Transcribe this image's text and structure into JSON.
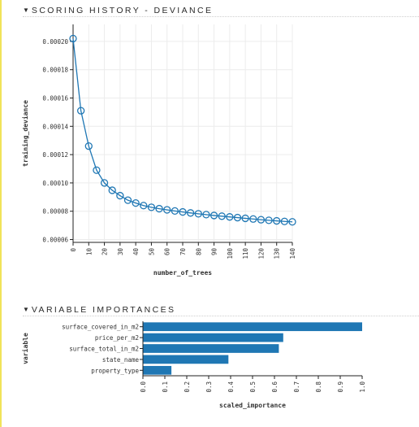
{
  "sections": {
    "scoring_history": {
      "title": "SCORING HISTORY - DEVIANCE"
    },
    "variable_importances": {
      "title": "VARIABLE IMPORTANCES"
    }
  },
  "colors": {
    "series": "#1f77b4",
    "bar": "#1f77b4",
    "sidebar_accent": "#f1e35a"
  },
  "chart_data": [
    {
      "type": "line",
      "title": "SCORING HISTORY - DEVIANCE",
      "xlabel": "number_of_trees",
      "ylabel": "training_deviance",
      "xlim": [
        0,
        140
      ],
      "ylim": [
        5.8e-05,
        0.000212
      ],
      "grid": true,
      "x_ticks": [
        "0",
        "10",
        "20",
        "30",
        "40",
        "50",
        "60",
        "70",
        "80",
        "90",
        "100",
        "110",
        "120",
        "130",
        "140"
      ],
      "y_ticks": [
        "0.00006",
        "0.00008",
        "0.00010",
        "0.00012",
        "0.00014",
        "0.00016",
        "0.00018",
        "0.00020"
      ],
      "markers": "open-circle",
      "series": [
        {
          "x": [
            0,
            5,
            10,
            15,
            20,
            25,
            30,
            35,
            40,
            45,
            50,
            55,
            60,
            65,
            70,
            75,
            80,
            85,
            90,
            95,
            100,
            105,
            110,
            115,
            120,
            125,
            130,
            135,
            140
          ],
          "values": [
            0.000202,
            0.000151,
            0.000126,
            0.000109,
            0.0001,
            9.48e-05,
            9.1e-05,
            8.78e-05,
            8.58e-05,
            8.4e-05,
            8.28e-05,
            8.18e-05,
            8.1e-05,
            8.02e-05,
            7.95e-05,
            7.88e-05,
            7.82e-05,
            7.76e-05,
            7.7e-05,
            7.65e-05,
            7.6e-05,
            7.55e-05,
            7.5e-05,
            7.45e-05,
            7.4e-05,
            7.36e-05,
            7.32e-05,
            7.28e-05,
            7.25e-05
          ]
        }
      ]
    },
    {
      "type": "bar",
      "orientation": "horizontal",
      "title": "VARIABLE IMPORTANCES",
      "xlabel": "scaled_importance",
      "ylabel": "variable",
      "xlim": [
        0,
        1
      ],
      "x_ticks": [
        "0.0",
        "0.1",
        "0.2",
        "0.3",
        "0.4",
        "0.5",
        "0.6",
        "0.7",
        "0.8",
        "0.9",
        "1.0"
      ],
      "categories": [
        "surface_covered_in_m2",
        "price_per_m2",
        "surface_total_in_m2",
        "state_name",
        "property_type"
      ],
      "values": [
        1.0,
        0.64,
        0.62,
        0.39,
        0.13
      ]
    }
  ]
}
